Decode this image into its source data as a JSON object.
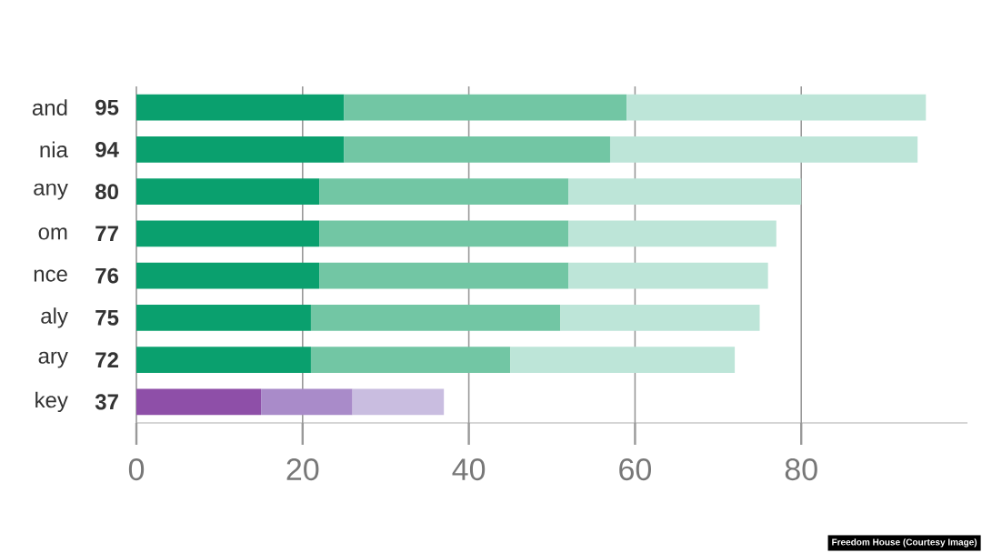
{
  "chart_data": {
    "type": "bar",
    "orientation": "horizontal",
    "stacked": true,
    "categories": [
      "and",
      "nia",
      "any",
      "om",
      "nce",
      "aly",
      "ary",
      "key"
    ],
    "series": [
      {
        "colors": [
          "#0aa06e",
          "#0aa06e",
          "#0aa06e",
          "#0aa06e",
          "#0aa06e",
          "#0aa06e",
          "#0aa06e",
          "#8e4fa8"
        ],
        "values": [
          25,
          25,
          22,
          22,
          22,
          21,
          21,
          15
        ]
      },
      {
        "colors": [
          "#72c6a4",
          "#72c6a4",
          "#72c6a4",
          "#72c6a4",
          "#72c6a4",
          "#72c6a4",
          "#72c6a4",
          "#a98bc9"
        ],
        "values": [
          34,
          32,
          30,
          30,
          30,
          30,
          24,
          11
        ]
      },
      {
        "colors": [
          "#bde5d8",
          "#bde5d8",
          "#bde5d8",
          "#bde5d8",
          "#bde5d8",
          "#bde5d8",
          "#bde5d8",
          "#c9bde0"
        ],
        "values": [
          36,
          37,
          28,
          25,
          24,
          24,
          27,
          11
        ]
      }
    ],
    "totals": [
      "95",
      "94",
      "80",
      "77",
      "76",
      "75",
      "72",
      "37"
    ],
    "xlim": [
      0,
      100
    ],
    "xticks": [
      0,
      20,
      40,
      60,
      80
    ],
    "grid": "x",
    "annotations": [
      "Freedom House (Courtesy Image)"
    ]
  }
}
